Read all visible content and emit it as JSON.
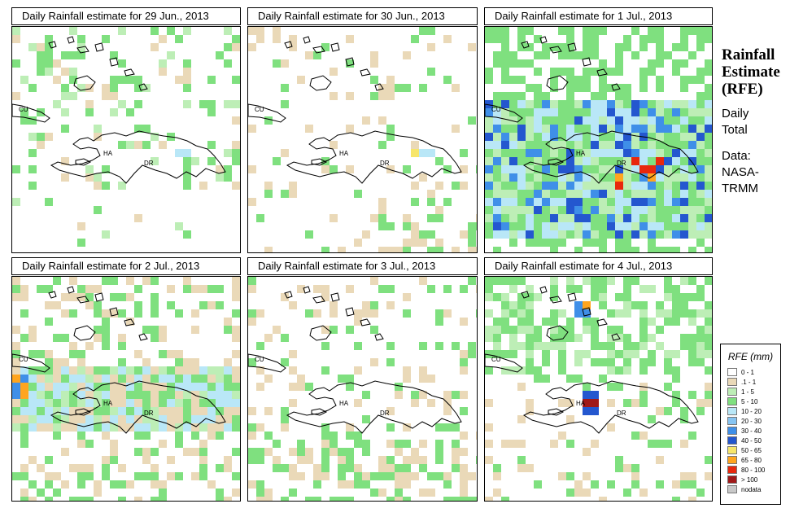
{
  "panels": [
    {
      "title": "Daily Rainfall estimate for  29 Jun., 2013",
      "pattern": "light"
    },
    {
      "title": "Daily Rainfall estimate for  30 Jun., 2013",
      "pattern": "light2"
    },
    {
      "title": "Daily Rainfall estimate for  1 Jul., 2013",
      "pattern": "heavy"
    },
    {
      "title": "Daily Rainfall estimate for  2 Jul., 2013",
      "pattern": "medium"
    },
    {
      "title": "Daily Rainfall estimate for  3 Jul., 2013",
      "pattern": "sparse"
    },
    {
      "title": "Daily Rainfall estimate for  4 Jul., 2013",
      "pattern": "north"
    }
  ],
  "map_labels": {
    "cu": "CU",
    "ha": "HA",
    "dr": "DR"
  },
  "side": {
    "title_line1": "Rainfall",
    "title_line2": "Estimate",
    "title_line3": "(RFE)",
    "period_line1": "Daily",
    "period_line2": "Total",
    "data_line1": "Data:",
    "data_line2": "NASA-",
    "data_line3": "TRMM"
  },
  "legend": {
    "title": "RFE (mm)",
    "items": [
      {
        "label": "0 - 1",
        "color": "#ffffff"
      },
      {
        "label": ".1 - 1",
        "color": "#ead9b8"
      },
      {
        "label": "1 - 5",
        "color": "#bdeeb6"
      },
      {
        "label": "5 - 10",
        "color": "#7fe07f"
      },
      {
        "label": "10 - 20",
        "color": "#b9e7f7"
      },
      {
        "label": "20 - 30",
        "color": "#86c4f2"
      },
      {
        "label": "30 - 40",
        "color": "#3f8fe8"
      },
      {
        "label": "40 - 50",
        "color": "#2457cf"
      },
      {
        "label": "50 - 65",
        "color": "#f7e66b"
      },
      {
        "label": "65 - 80",
        "color": "#ffa51f"
      },
      {
        "label": "80 - 100",
        "color": "#e8280d"
      },
      {
        "label": "> 100",
        "color": "#a01818"
      },
      {
        "label": "nodata",
        "color": "#c8c8c8"
      }
    ]
  }
}
